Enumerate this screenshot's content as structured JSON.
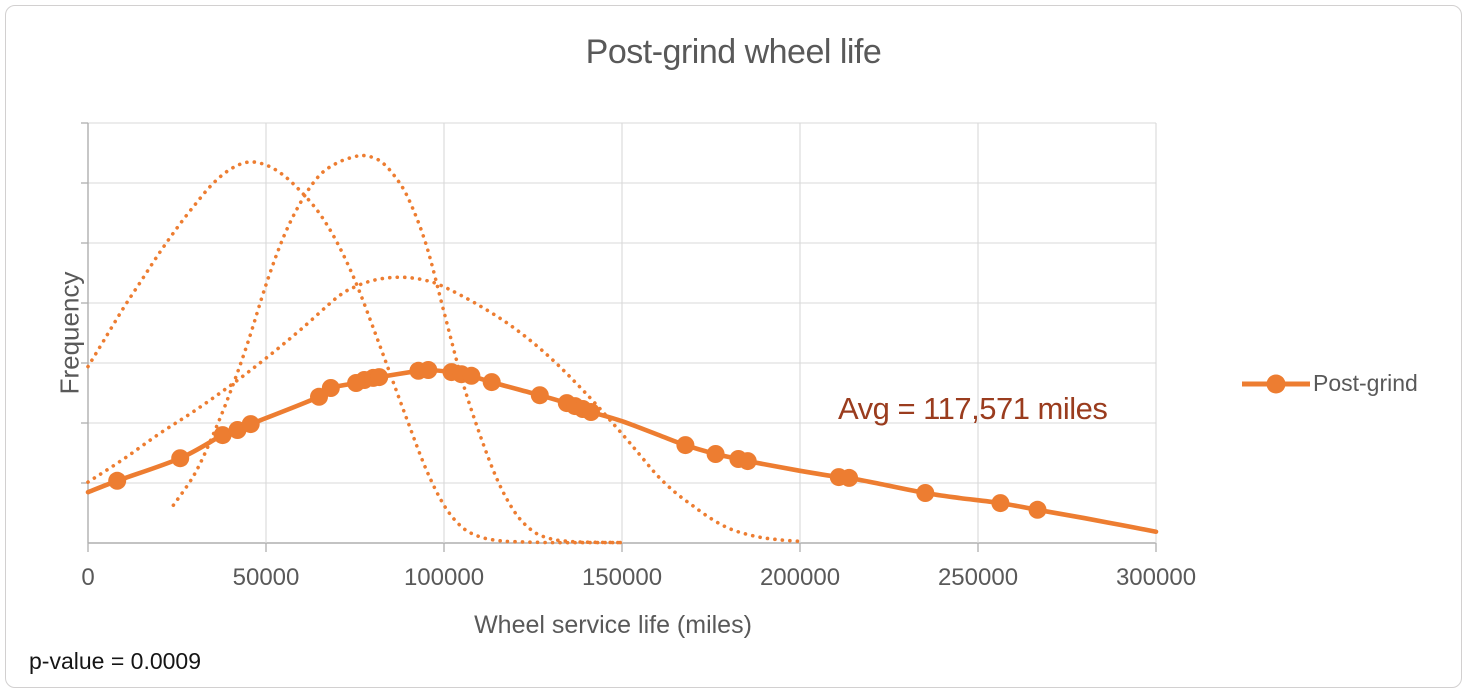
{
  "annotations": {
    "avg": "Avg = 117,571 miles",
    "p_value": "p-value = 0.0009"
  },
  "colors": {
    "series_orange": "#ED7D31",
    "gridline": "#D9D9D9",
    "axis_line": "#AFAFAF",
    "text_gray": "#595959",
    "annotation_brown": "#9A3C1E",
    "p_value_text": "#151515"
  },
  "chart_data": {
    "type": "line",
    "title": "Post-grind wheel life",
    "xlabel": "Wheel service life (miles)",
    "ylabel": "Frequency",
    "x_range": [
      0,
      300000
    ],
    "x_ticks": [
      0,
      50000,
      100000,
      150000,
      200000,
      250000,
      300000
    ],
    "x_tick_labels": [
      "0",
      "50000",
      "100000",
      "150000",
      "200000",
      "250000",
      "300000"
    ],
    "y_tick_labels": [],
    "y_gridline_bands": 7,
    "legend_position": "right",
    "grid": true,
    "series": [
      {
        "name": "Post-grind",
        "style": "solid-with-markers",
        "color": "#ED7D31",
        "curve": [
          [
            0,
            0.121
          ],
          [
            8200,
            0.148
          ],
          [
            25900,
            0.202
          ],
          [
            37800,
            0.257
          ],
          [
            42000,
            0.269
          ],
          [
            45700,
            0.283
          ],
          [
            64900,
            0.348
          ],
          [
            68200,
            0.369
          ],
          [
            75300,
            0.381
          ],
          [
            77600,
            0.388
          ],
          [
            80100,
            0.393
          ],
          [
            81800,
            0.395
          ],
          [
            92800,
            0.41
          ],
          [
            95600,
            0.412
          ],
          [
            102100,
            0.407
          ],
          [
            104900,
            0.402
          ],
          [
            107700,
            0.398
          ],
          [
            113400,
            0.383
          ],
          [
            126900,
            0.352
          ],
          [
            134500,
            0.333
          ],
          [
            136800,
            0.326
          ],
          [
            139000,
            0.319
          ],
          [
            141300,
            0.312
          ],
          [
            150000,
            0.29
          ],
          [
            160000,
            0.258
          ],
          [
            167800,
            0.233
          ],
          [
            176300,
            0.212
          ],
          [
            182700,
            0.2
          ],
          [
            185300,
            0.195
          ],
          [
            200000,
            0.172
          ],
          [
            210900,
            0.157
          ],
          [
            213800,
            0.155
          ],
          [
            224000,
            0.138
          ],
          [
            235200,
            0.119
          ],
          [
            245000,
            0.107
          ],
          [
            256300,
            0.095
          ],
          [
            266700,
            0.079
          ],
          [
            280000,
            0.059
          ],
          [
            290000,
            0.043
          ],
          [
            300000,
            0.027
          ]
        ],
        "markers": [
          [
            8200,
            0.148
          ],
          [
            25900,
            0.202
          ],
          [
            37800,
            0.257
          ],
          [
            42000,
            0.269
          ],
          [
            45700,
            0.283
          ],
          [
            64900,
            0.348
          ],
          [
            68200,
            0.369
          ],
          [
            75300,
            0.381
          ],
          [
            77600,
            0.388
          ],
          [
            80100,
            0.393
          ],
          [
            81800,
            0.395
          ],
          [
            92800,
            0.41
          ],
          [
            95600,
            0.412
          ],
          [
            102100,
            0.407
          ],
          [
            104900,
            0.402
          ],
          [
            107700,
            0.398
          ],
          [
            113400,
            0.383
          ],
          [
            126900,
            0.352
          ],
          [
            134500,
            0.333
          ],
          [
            136800,
            0.326
          ],
          [
            139000,
            0.319
          ],
          [
            141300,
            0.312
          ],
          [
            167800,
            0.233
          ],
          [
            176300,
            0.212
          ],
          [
            182700,
            0.2
          ],
          [
            185300,
            0.195
          ],
          [
            210900,
            0.157
          ],
          [
            213800,
            0.155
          ],
          [
            235200,
            0.119
          ],
          [
            256300,
            0.095
          ],
          [
            266700,
            0.079
          ]
        ]
      },
      {
        "name": "dotted-distribution-1",
        "style": "dotted",
        "color": "#ED7D31",
        "points": [
          [
            0,
            0.42
          ],
          [
            5000,
            0.49
          ],
          [
            10000,
            0.56
          ],
          [
            15000,
            0.625
          ],
          [
            20000,
            0.69
          ],
          [
            25000,
            0.75
          ],
          [
            30000,
            0.805
          ],
          [
            35000,
            0.855
          ],
          [
            40000,
            0.89
          ],
          [
            45000,
            0.907
          ],
          [
            50000,
            0.9
          ],
          [
            55000,
            0.875
          ],
          [
            60000,
            0.835
          ],
          [
            65000,
            0.785
          ],
          [
            70000,
            0.715
          ],
          [
            75000,
            0.625
          ],
          [
            80000,
            0.515
          ],
          [
            85000,
            0.4
          ],
          [
            90000,
            0.285
          ],
          [
            95000,
            0.175
          ],
          [
            100000,
            0.09
          ],
          [
            105000,
            0.038
          ],
          [
            110000,
            0.015
          ],
          [
            115000,
            0.006
          ],
          [
            120000,
            0.003
          ],
          [
            130000,
            0.001
          ],
          [
            140000,
            0.001
          ],
          [
            150000,
            0.001
          ]
        ]
      },
      {
        "name": "dotted-distribution-2",
        "style": "dotted",
        "color": "#ED7D31",
        "points": [
          [
            24000,
            0.09
          ],
          [
            30000,
            0.165
          ],
          [
            35000,
            0.255
          ],
          [
            40000,
            0.36
          ],
          [
            45000,
            0.48
          ],
          [
            50000,
            0.615
          ],
          [
            55000,
            0.73
          ],
          [
            60000,
            0.815
          ],
          [
            65000,
            0.875
          ],
          [
            70000,
            0.905
          ],
          [
            75000,
            0.92
          ],
          [
            78000,
            0.922
          ],
          [
            82000,
            0.91
          ],
          [
            86000,
            0.875
          ],
          [
            90000,
            0.82
          ],
          [
            95000,
            0.71
          ],
          [
            100000,
            0.55
          ],
          [
            105000,
            0.39
          ],
          [
            110000,
            0.26
          ],
          [
            115000,
            0.15
          ],
          [
            120000,
            0.072
          ],
          [
            125000,
            0.028
          ],
          [
            130000,
            0.01
          ],
          [
            135000,
            0.004
          ],
          [
            140000,
            0.002
          ],
          [
            150000,
            0.001
          ]
        ]
      },
      {
        "name": "dotted-distribution-3",
        "style": "dotted",
        "color": "#ED7D31",
        "points": [
          [
            0,
            0.145
          ],
          [
            10000,
            0.2
          ],
          [
            20000,
            0.26
          ],
          [
            30000,
            0.315
          ],
          [
            40000,
            0.375
          ],
          [
            50000,
            0.44
          ],
          [
            60000,
            0.51
          ],
          [
            70000,
            0.585
          ],
          [
            75000,
            0.61
          ],
          [
            80000,
            0.625
          ],
          [
            85000,
            0.632
          ],
          [
            90000,
            0.632
          ],
          [
            95000,
            0.625
          ],
          [
            100000,
            0.61
          ],
          [
            110000,
            0.565
          ],
          [
            120000,
            0.51
          ],
          [
            130000,
            0.44
          ],
          [
            140000,
            0.355
          ],
          [
            150000,
            0.26
          ],
          [
            155000,
            0.21
          ],
          [
            160000,
            0.16
          ],
          [
            165000,
            0.12
          ],
          [
            170000,
            0.088
          ],
          [
            175000,
            0.058
          ],
          [
            180000,
            0.035
          ],
          [
            185000,
            0.021
          ],
          [
            190000,
            0.012
          ],
          [
            195000,
            0.007
          ],
          [
            200000,
            0.004
          ]
        ]
      }
    ]
  }
}
